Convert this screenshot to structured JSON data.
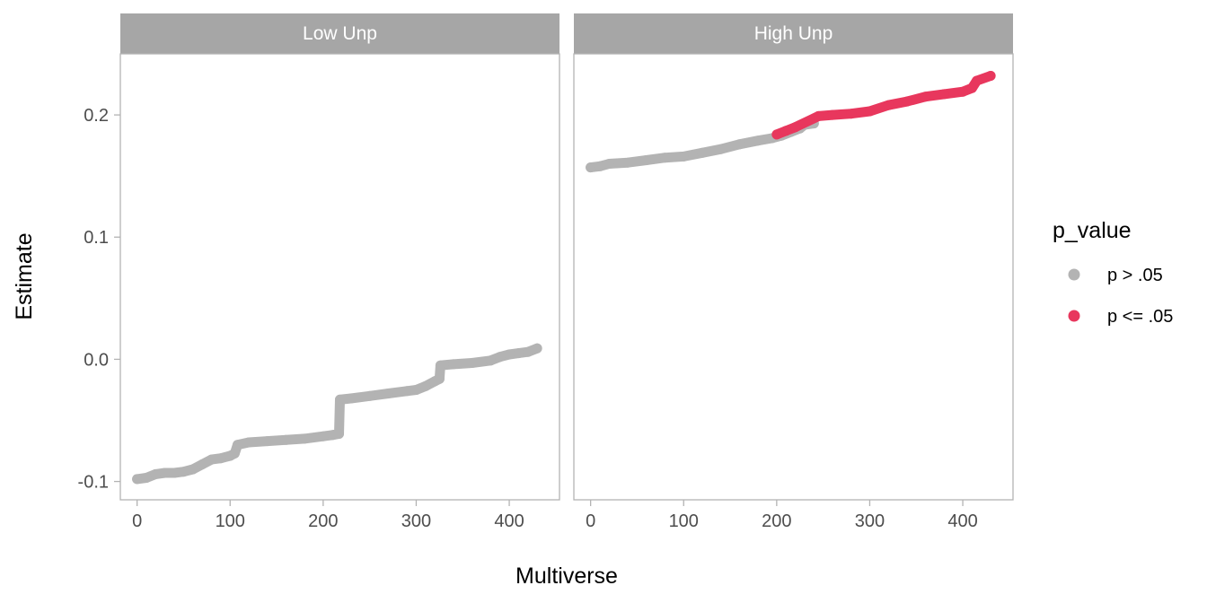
{
  "chart_data": {
    "type": "scatter",
    "xlabel": "Multiverse",
    "ylabel": "Estimate",
    "xlim": [
      -18,
      454
    ],
    "ylim": [
      -0.115,
      0.25
    ],
    "x_ticks": [
      {
        "value": 0,
        "label": "0"
      },
      {
        "value": 100,
        "label": "100"
      },
      {
        "value": 200,
        "label": "200"
      },
      {
        "value": 300,
        "label": "300"
      },
      {
        "value": 400,
        "label": "400"
      }
    ],
    "y_ticks": [
      {
        "value": -0.1,
        "label": "-0.1"
      },
      {
        "value": 0.0,
        "label": "0.0"
      },
      {
        "value": 0.1,
        "label": "0.1"
      },
      {
        "value": 0.2,
        "label": "0.2"
      }
    ],
    "grid": false,
    "legend": {
      "title": "p_value",
      "position": "right",
      "entries": [
        {
          "label": "p > .05",
          "color": "#b3b3b3"
        },
        {
          "label": "p <= .05",
          "color": "#e8375d"
        }
      ]
    },
    "panels": [
      {
        "strip": "Low Unp",
        "series": [
          {
            "group": "p > .05",
            "color": "#b3b3b3",
            "points": [
              [
                0,
                -0.098
              ],
              [
                10,
                -0.097
              ],
              [
                20,
                -0.094
              ],
              [
                30,
                -0.093
              ],
              [
                40,
                -0.093
              ],
              [
                50,
                -0.092
              ],
              [
                60,
                -0.09
              ],
              [
                70,
                -0.086
              ],
              [
                80,
                -0.082
              ],
              [
                90,
                -0.081
              ],
              [
                100,
                -0.079
              ],
              [
                105,
                -0.077
              ],
              [
                108,
                -0.07
              ],
              [
                120,
                -0.068
              ],
              [
                140,
                -0.067
              ],
              [
                160,
                -0.066
              ],
              [
                180,
                -0.065
              ],
              [
                200,
                -0.063
              ],
              [
                210,
                -0.062
              ],
              [
                217,
                -0.061
              ],
              [
                218,
                -0.033
              ],
              [
                230,
                -0.032
              ],
              [
                250,
                -0.03
              ],
              [
                270,
                -0.028
              ],
              [
                290,
                -0.026
              ],
              [
                300,
                -0.025
              ],
              [
                310,
                -0.022
              ],
              [
                320,
                -0.018
              ],
              [
                325,
                -0.016
              ],
              [
                326,
                -0.005
              ],
              [
                340,
                -0.004
              ],
              [
                360,
                -0.003
              ],
              [
                380,
                -0.001
              ],
              [
                390,
                0.002
              ],
              [
                400,
                0.004
              ],
              [
                410,
                0.005
              ],
              [
                420,
                0.006
              ],
              [
                430,
                0.009
              ]
            ]
          }
        ]
      },
      {
        "strip": "High Unp",
        "series": [
          {
            "group": "p > .05",
            "color": "#b3b3b3",
            "points": [
              [
                0,
                0.157
              ],
              [
                10,
                0.158
              ],
              [
                20,
                0.16
              ],
              [
                40,
                0.161
              ],
              [
                60,
                0.163
              ],
              [
                80,
                0.165
              ],
              [
                100,
                0.166
              ],
              [
                120,
                0.169
              ],
              [
                140,
                0.172
              ],
              [
                160,
                0.176
              ],
              [
                180,
                0.179
              ],
              [
                195,
                0.181
              ],
              [
                205,
                0.183
              ],
              [
                215,
                0.186
              ],
              [
                225,
                0.189
              ],
              [
                230,
                0.192
              ],
              [
                240,
                0.193
              ]
            ]
          },
          {
            "group": "p <= .05",
            "color": "#e8375d",
            "points": [
              [
                200,
                0.184
              ],
              [
                210,
                0.187
              ],
              [
                220,
                0.19
              ],
              [
                245,
                0.199
              ],
              [
                260,
                0.2
              ],
              [
                280,
                0.201
              ],
              [
                300,
                0.203
              ],
              [
                320,
                0.208
              ],
              [
                340,
                0.211
              ],
              [
                360,
                0.215
              ],
              [
                380,
                0.217
              ],
              [
                400,
                0.219
              ],
              [
                410,
                0.222
              ],
              [
                415,
                0.228
              ],
              [
                430,
                0.232
              ]
            ]
          }
        ]
      }
    ]
  }
}
